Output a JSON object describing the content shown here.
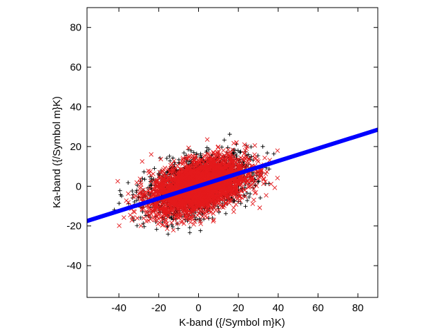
{
  "chart_data": {
    "type": "scatter",
    "title": "",
    "xlabel": "K-band ({/Symbol m}K)",
    "ylabel": "Ka-band ({/Symbol m}K)",
    "xlim": [
      -56,
      90
    ],
    "ylim": [
      -56,
      90
    ],
    "xticks": [
      -40,
      -20,
      0,
      20,
      40,
      60,
      80
    ],
    "yticks": [
      -40,
      -20,
      0,
      20,
      40,
      60,
      80
    ],
    "grid": false,
    "legend": "none",
    "colors": {
      "black_series": "#000000",
      "red_series": "#e41a1c",
      "fit_line": "#0000ff"
    },
    "series": [
      {
        "marker": "plus",
        "color": "#000000",
        "distribution": {
          "count": 1800,
          "center": [
            0,
            0
          ],
          "sd_x": 13,
          "sd_y": 7.5,
          "correlation": 0.45,
          "x_range": [
            -54,
            45
          ],
          "y_range": [
            -25,
            28
          ]
        }
      },
      {
        "marker": "cross",
        "color": "#e41a1c",
        "distribution": {
          "count": 3200,
          "center": [
            0,
            0
          ],
          "sd_x": 12,
          "sd_y": 7,
          "correlation": 0.45,
          "x_range": [
            -56,
            40
          ],
          "y_range": [
            -27,
            27
          ]
        }
      },
      {
        "type": "line",
        "color": "#0000ff",
        "x": [
          -56,
          90
        ],
        "y": [
          -17.5,
          28.5
        ]
      }
    ]
  }
}
